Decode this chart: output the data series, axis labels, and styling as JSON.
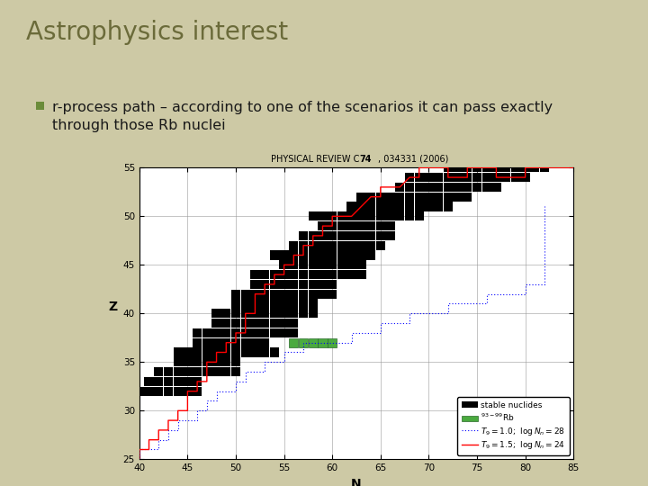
{
  "bg_color": "#cdc9a5",
  "title": "Astrophysics interest",
  "title_color": "#6b6b3a",
  "title_fontsize": 20,
  "bullet_color": "#6b8c3a",
  "bullet_text_line1": "r-process path – according to one of the scenarios it can pass exactly",
  "bullet_text_line2": "through those Rb nuclei",
  "bullet_fontsize": 11.5,
  "chart_bg": "#ffffff",
  "xlabel": "N",
  "ylabel": "Z",
  "xlim": [
    40,
    85
  ],
  "ylim": [
    25,
    55
  ],
  "xticks": [
    40,
    45,
    50,
    55,
    60,
    65,
    70,
    75,
    80,
    85
  ],
  "yticks": [
    25,
    30,
    35,
    40,
    45,
    50,
    55
  ],
  "stable_nuclides": [
    [
      40,
      32
    ],
    [
      41,
      32
    ],
    [
      42,
      32
    ],
    [
      43,
      32
    ],
    [
      44,
      32
    ],
    [
      45,
      32
    ],
    [
      46,
      32
    ],
    [
      41,
      33
    ],
    [
      42,
      33
    ],
    [
      43,
      33
    ],
    [
      44,
      33
    ],
    [
      45,
      33
    ],
    [
      46,
      33
    ],
    [
      42,
      34
    ],
    [
      43,
      34
    ],
    [
      44,
      34
    ],
    [
      45,
      34
    ],
    [
      46,
      34
    ],
    [
      47,
      34
    ],
    [
      48,
      34
    ],
    [
      49,
      34
    ],
    [
      50,
      34
    ],
    [
      44,
      35
    ],
    [
      45,
      35
    ],
    [
      46,
      35
    ],
    [
      47,
      35
    ],
    [
      48,
      35
    ],
    [
      49,
      35
    ],
    [
      50,
      35
    ],
    [
      44,
      36
    ],
    [
      45,
      36
    ],
    [
      46,
      36
    ],
    [
      47,
      36
    ],
    [
      48,
      36
    ],
    [
      49,
      36
    ],
    [
      50,
      36
    ],
    [
      51,
      36
    ],
    [
      52,
      36
    ],
    [
      53,
      36
    ],
    [
      54,
      36
    ],
    [
      46,
      37
    ],
    [
      47,
      37
    ],
    [
      48,
      37
    ],
    [
      49,
      37
    ],
    [
      50,
      37
    ],
    [
      51,
      37
    ],
    [
      52,
      37
    ],
    [
      53,
      37
    ],
    [
      46,
      38
    ],
    [
      47,
      38
    ],
    [
      48,
      38
    ],
    [
      49,
      38
    ],
    [
      50,
      38
    ],
    [
      51,
      38
    ],
    [
      52,
      38
    ],
    [
      53,
      38
    ],
    [
      54,
      38
    ],
    [
      55,
      38
    ],
    [
      56,
      38
    ],
    [
      48,
      39
    ],
    [
      49,
      39
    ],
    [
      50,
      39
    ],
    [
      51,
      39
    ],
    [
      52,
      39
    ],
    [
      53,
      39
    ],
    [
      54,
      39
    ],
    [
      55,
      39
    ],
    [
      56,
      39
    ],
    [
      48,
      40
    ],
    [
      49,
      40
    ],
    [
      50,
      40
    ],
    [
      51,
      40
    ],
    [
      52,
      40
    ],
    [
      53,
      40
    ],
    [
      54,
      40
    ],
    [
      55,
      40
    ],
    [
      56,
      40
    ],
    [
      57,
      40
    ],
    [
      58,
      40
    ],
    [
      50,
      41
    ],
    [
      51,
      41
    ],
    [
      52,
      41
    ],
    [
      53,
      41
    ],
    [
      54,
      41
    ],
    [
      55,
      41
    ],
    [
      56,
      41
    ],
    [
      57,
      41
    ],
    [
      58,
      41
    ],
    [
      50,
      42
    ],
    [
      51,
      42
    ],
    [
      52,
      42
    ],
    [
      53,
      42
    ],
    [
      54,
      42
    ],
    [
      55,
      42
    ],
    [
      56,
      42
    ],
    [
      57,
      42
    ],
    [
      58,
      42
    ],
    [
      59,
      42
    ],
    [
      60,
      42
    ],
    [
      52,
      43
    ],
    [
      53,
      43
    ],
    [
      54,
      43
    ],
    [
      55,
      43
    ],
    [
      56,
      43
    ],
    [
      57,
      43
    ],
    [
      58,
      43
    ],
    [
      59,
      43
    ],
    [
      60,
      43
    ],
    [
      52,
      44
    ],
    [
      53,
      44
    ],
    [
      54,
      44
    ],
    [
      55,
      44
    ],
    [
      56,
      44
    ],
    [
      57,
      44
    ],
    [
      58,
      44
    ],
    [
      59,
      44
    ],
    [
      60,
      44
    ],
    [
      61,
      44
    ],
    [
      62,
      44
    ],
    [
      63,
      44
    ],
    [
      55,
      45
    ],
    [
      56,
      45
    ],
    [
      57,
      45
    ],
    [
      58,
      45
    ],
    [
      59,
      45
    ],
    [
      60,
      45
    ],
    [
      61,
      45
    ],
    [
      62,
      45
    ],
    [
      63,
      45
    ],
    [
      54,
      46
    ],
    [
      55,
      46
    ],
    [
      56,
      46
    ],
    [
      57,
      46
    ],
    [
      58,
      46
    ],
    [
      59,
      46
    ],
    [
      60,
      46
    ],
    [
      61,
      46
    ],
    [
      62,
      46
    ],
    [
      63,
      46
    ],
    [
      64,
      46
    ],
    [
      56,
      47
    ],
    [
      57,
      47
    ],
    [
      58,
      47
    ],
    [
      59,
      47
    ],
    [
      60,
      47
    ],
    [
      61,
      47
    ],
    [
      62,
      47
    ],
    [
      63,
      47
    ],
    [
      64,
      47
    ],
    [
      65,
      47
    ],
    [
      57,
      48
    ],
    [
      58,
      48
    ],
    [
      59,
      48
    ],
    [
      60,
      48
    ],
    [
      61,
      48
    ],
    [
      62,
      48
    ],
    [
      63,
      48
    ],
    [
      64,
      48
    ],
    [
      65,
      48
    ],
    [
      66,
      48
    ],
    [
      59,
      49
    ],
    [
      60,
      49
    ],
    [
      61,
      49
    ],
    [
      62,
      49
    ],
    [
      63,
      49
    ],
    [
      64,
      49
    ],
    [
      65,
      49
    ],
    [
      66,
      49
    ],
    [
      58,
      50
    ],
    [
      59,
      50
    ],
    [
      60,
      50
    ],
    [
      61,
      50
    ],
    [
      62,
      50
    ],
    [
      63,
      50
    ],
    [
      64,
      50
    ],
    [
      65,
      50
    ],
    [
      66,
      50
    ],
    [
      67,
      50
    ],
    [
      68,
      50
    ],
    [
      69,
      50
    ],
    [
      62,
      51
    ],
    [
      63,
      51
    ],
    [
      64,
      51
    ],
    [
      65,
      51
    ],
    [
      66,
      51
    ],
    [
      67,
      51
    ],
    [
      68,
      51
    ],
    [
      69,
      51
    ],
    [
      70,
      51
    ],
    [
      71,
      51
    ],
    [
      72,
      51
    ],
    [
      63,
      52
    ],
    [
      64,
      52
    ],
    [
      65,
      52
    ],
    [
      66,
      52
    ],
    [
      67,
      52
    ],
    [
      68,
      52
    ],
    [
      69,
      52
    ],
    [
      70,
      52
    ],
    [
      71,
      52
    ],
    [
      72,
      52
    ],
    [
      73,
      52
    ],
    [
      74,
      52
    ],
    [
      67,
      53
    ],
    [
      68,
      53
    ],
    [
      69,
      53
    ],
    [
      70,
      53
    ],
    [
      71,
      53
    ],
    [
      72,
      53
    ],
    [
      73,
      53
    ],
    [
      74,
      53
    ],
    [
      75,
      53
    ],
    [
      76,
      53
    ],
    [
      77,
      53
    ],
    [
      68,
      54
    ],
    [
      69,
      54
    ],
    [
      70,
      54
    ],
    [
      71,
      54
    ],
    [
      72,
      54
    ],
    [
      73,
      54
    ],
    [
      74,
      54
    ],
    [
      75,
      54
    ],
    [
      76,
      54
    ],
    [
      77,
      54
    ],
    [
      78,
      54
    ],
    [
      79,
      54
    ],
    [
      80,
      54
    ],
    [
      72,
      55
    ],
    [
      73,
      55
    ],
    [
      74,
      55
    ],
    [
      75,
      55
    ],
    [
      76,
      55
    ],
    [
      77,
      55
    ],
    [
      78,
      55
    ],
    [
      79,
      55
    ],
    [
      80,
      55
    ],
    [
      81,
      55
    ],
    [
      82,
      55
    ]
  ],
  "rb_nuclides": [
    [
      56,
      37
    ],
    [
      57,
      37
    ],
    [
      58,
      37
    ],
    [
      59,
      37
    ],
    [
      60,
      37
    ]
  ],
  "red_path_x": [
    40,
    40,
    41,
    41,
    42,
    42,
    43,
    43,
    44,
    44,
    45,
    45,
    46,
    46,
    47,
    47,
    48,
    48,
    49,
    49,
    50,
    50,
    51,
    51,
    52,
    52,
    53,
    53,
    54,
    54,
    55,
    55,
    56,
    56,
    57,
    57,
    58,
    58,
    59,
    59,
    60,
    60,
    61,
    62,
    62,
    63,
    63,
    64,
    65,
    65,
    66,
    67,
    67,
    68,
    69,
    69,
    70,
    71,
    72,
    72,
    73,
    74,
    74,
    75,
    76,
    77,
    77,
    78,
    79,
    80,
    80,
    81,
    82,
    83,
    84,
    85
  ],
  "red_path_y": [
    25,
    26,
    26,
    27,
    27,
    28,
    28,
    29,
    29,
    30,
    30,
    32,
    32,
    33,
    33,
    35,
    35,
    36,
    36,
    37,
    37,
    38,
    38,
    40,
    40,
    42,
    42,
    43,
    43,
    44,
    44,
    45,
    45,
    46,
    46,
    47,
    47,
    48,
    48,
    49,
    49,
    50,
    50,
    50,
    50,
    51,
    51,
    52,
    52,
    53,
    53,
    53,
    53,
    54,
    54,
    55,
    55,
    55,
    55,
    54,
    54,
    54,
    55,
    55,
    55,
    55,
    54,
    54,
    54,
    54,
    55,
    55,
    55,
    55,
    55,
    55
  ],
  "blue_path_x": [
    40,
    40,
    41,
    42,
    42,
    43,
    43,
    44,
    44,
    45,
    46,
    46,
    47,
    47,
    48,
    48,
    49,
    50,
    50,
    51,
    51,
    52,
    53,
    53,
    54,
    55,
    55,
    56,
    57,
    57,
    58,
    59,
    60,
    61,
    62,
    62,
    63,
    64,
    65,
    65,
    66,
    67,
    68,
    68,
    69,
    70,
    71,
    72,
    72,
    73,
    74,
    75,
    76,
    76,
    77,
    78,
    79,
    80,
    80,
    81,
    82,
    82,
    82,
    82,
    82,
    82,
    82,
    82,
    82
  ],
  "blue_path_y": [
    25,
    26,
    26,
    26,
    27,
    27,
    28,
    28,
    29,
    29,
    29,
    30,
    30,
    31,
    31,
    32,
    32,
    32,
    33,
    33,
    34,
    34,
    34,
    35,
    35,
    35,
    36,
    36,
    36,
    37,
    37,
    37,
    37,
    37,
    37,
    38,
    38,
    38,
    38,
    39,
    39,
    39,
    39,
    40,
    40,
    40,
    40,
    40,
    41,
    41,
    41,
    41,
    41,
    42,
    42,
    42,
    42,
    42,
    43,
    43,
    43,
    44,
    45,
    46,
    47,
    48,
    49,
    50,
    51
  ]
}
